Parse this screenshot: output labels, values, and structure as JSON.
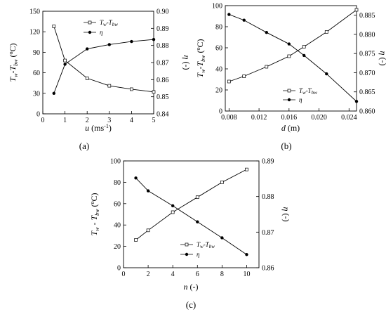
{
  "chart_data": [
    {
      "type": "line",
      "panel_label": "(a)",
      "xlabel": "u (ms⁻¹)",
      "ylabel_left": "Tw-Tbw (°C)",
      "ylabel_right": "η (-)",
      "xlim": [
        0,
        5
      ],
      "ylim_left": [
        0,
        150
      ],
      "ylim_right": [
        0.84,
        0.9
      ],
      "x_ticks": [
        "0",
        "1",
        "2",
        "3",
        "4",
        "5"
      ],
      "y_left_ticks": [
        "0",
        "30",
        "60",
        "90",
        "120",
        "150"
      ],
      "y_right_ticks": [
        "0.84",
        "0.85",
        "0.86",
        "0.87",
        "0.88",
        "0.89",
        "0.90"
      ],
      "legend_position": "top-right",
      "series": [
        {
          "name": "Tw-Tbw",
          "axis": "left",
          "marker": "open-square",
          "x": [
            0.5,
            1,
            2,
            3,
            4,
            5
          ],
          "values": [
            128,
            78,
            52,
            41,
            36,
            32
          ]
        },
        {
          "name": "η",
          "axis": "right",
          "marker": "filled-circle",
          "x": [
            0.5,
            1,
            2,
            3,
            4,
            5
          ],
          "values": [
            0.852,
            0.869,
            0.878,
            0.8805,
            0.8823,
            0.8835
          ]
        }
      ]
    },
    {
      "type": "line",
      "panel_label": "(b)",
      "xlabel": "d (m)",
      "ylabel_left": "Tw-Tbw (°C)",
      "ylabel_right": "η (-)",
      "xlim": [
        0.0075,
        0.025
      ],
      "ylim_left": [
        0,
        100
      ],
      "ylim_right": [
        0.86,
        0.8875
      ],
      "x_ticks": [
        "0.008",
        "0.012",
        "0.016",
        "0.020",
        "0.024"
      ],
      "y_left_ticks": [
        "0",
        "20",
        "40",
        "60",
        "80",
        "100"
      ],
      "y_right_ticks": [
        "0.860",
        "0.865",
        "0.870",
        "0.875",
        "0.880",
        "0.885"
      ],
      "legend_position": "bottom-center",
      "series": [
        {
          "name": "Tw-Tbw",
          "axis": "left",
          "marker": "open-square",
          "x": [
            0.008,
            0.01,
            0.013,
            0.016,
            0.018,
            0.021,
            0.025
          ],
          "values": [
            28,
            33,
            42,
            52,
            61,
            75,
            96
          ]
        },
        {
          "name": "η",
          "axis": "right",
          "marker": "filled-circle",
          "x": [
            0.008,
            0.01,
            0.013,
            0.016,
            0.018,
            0.021,
            0.025
          ],
          "values": [
            0.8852,
            0.8837,
            0.8805,
            0.8775,
            0.8745,
            0.8697,
            0.8625
          ]
        }
      ]
    },
    {
      "type": "line",
      "panel_label": "(c)",
      "xlabel": "n (-)",
      "ylabel_left": "Tw-Tbw (°C)",
      "ylabel_right": "η (-)",
      "xlim": [
        0,
        11
      ],
      "ylim_left": [
        0,
        100
      ],
      "ylim_right": [
        0.86,
        0.89
      ],
      "x_ticks": [
        "0",
        "2",
        "4",
        "6",
        "8",
        "10"
      ],
      "y_left_ticks": [
        "0",
        "20",
        "40",
        "60",
        "80",
        "100"
      ],
      "y_right_ticks": [
        "0.86",
        "0.87",
        "0.88",
        "0.89"
      ],
      "legend_position": "bottom-center",
      "series": [
        {
          "name": "Tw-Tbw",
          "axis": "left",
          "marker": "open-square",
          "x": [
            1,
            2,
            4,
            6,
            8,
            10
          ],
          "values": [
            26,
            35,
            52,
            66,
            80,
            92
          ]
        },
        {
          "name": "η",
          "axis": "right",
          "marker": "filled-circle",
          "x": [
            1,
            2,
            4,
            6,
            8,
            10
          ],
          "values": [
            0.8852,
            0.8816,
            0.8774,
            0.8729,
            0.8684,
            0.8637
          ]
        }
      ]
    }
  ]
}
